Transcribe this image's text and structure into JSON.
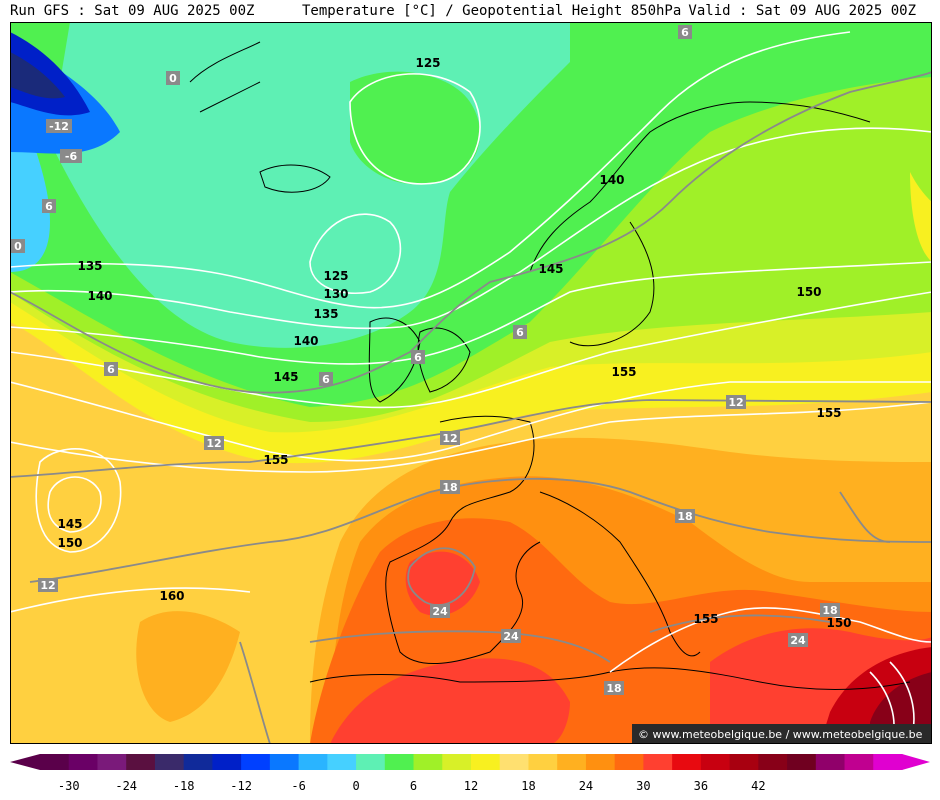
{
  "header": {
    "run": "Run GFS : Sat 09 AUG 2025 00Z",
    "title": "Temperature [°C] / Geopotential Height 850hPa",
    "valid": "Valid : Sat 09 AUG 2025 00Z"
  },
  "credit": "© www.meteobelgique.be / www.meteobelgique.be",
  "colorbar": {
    "colors": [
      "#5a004a",
      "#6a0066",
      "#7a1a7a",
      "#5a1040",
      "#3a2a6a",
      "#102a9a",
      "#0020c8",
      "#0040ff",
      "#0a78ff",
      "#2ab4ff",
      "#46d0ff",
      "#5ef0b4",
      "#50f050",
      "#a0f028",
      "#d8f028",
      "#f8f020",
      "#ffe070",
      "#ffd040",
      "#ffb020",
      "#ff9010",
      "#ff6a10",
      "#ff4030",
      "#e80a10",
      "#c80010",
      "#a80010",
      "#880018",
      "#700020",
      "#90006a",
      "#c00090",
      "#e000d0"
    ],
    "ticks": [
      "-30",
      "-24",
      "-18",
      "-12",
      "-6",
      "0",
      "6",
      "12",
      "18",
      "24",
      "30",
      "36",
      "42"
    ]
  },
  "height_labels": [
    "125",
    "140",
    "135",
    "140",
    "125",
    "130",
    "135",
    "140",
    "145",
    "145",
    "150",
    "155",
    "155",
    "155",
    "145",
    "150",
    "160",
    "155",
    "150"
  ],
  "temp_labels": [
    "6",
    "0",
    "-12",
    "-6",
    "6",
    "0",
    "6",
    "6",
    "6",
    "6",
    "12",
    "12",
    "12",
    "18",
    "18",
    "24",
    "24",
    "18",
    "18",
    "24",
    "12"
  ]
}
